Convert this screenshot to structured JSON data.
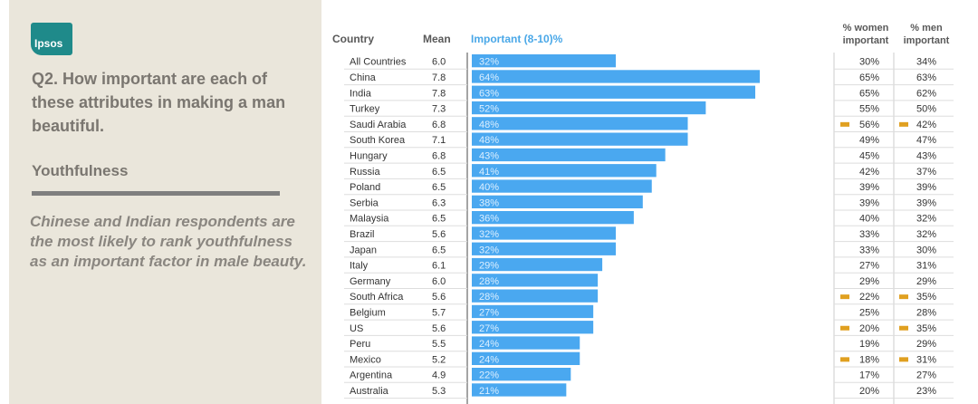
{
  "brand": {
    "logo_text": "Ipsos"
  },
  "question": "Q2. How important are each of these attributes in making a man beautiful.",
  "topic": "Youthfulness",
  "insight": "Chinese and Indian respondents are the most likely to rank youthfulness as an important factor in male beauty.",
  "colors": {
    "bar": "#4aa8f0",
    "marker": "#e0a020",
    "panel": "#eae6db",
    "header_blue": "#4aa8e8"
  },
  "chart_data": {
    "type": "bar",
    "orientation": "horizontal",
    "headers": {
      "country": "Country",
      "mean": "Mean",
      "important": "Important (8-10)%",
      "women": "% women important",
      "men": "% men important"
    },
    "categories": [
      "All Countries",
      "China",
      "India",
      "Turkey",
      "Saudi Arabia",
      "South Korea",
      "Hungary",
      "Russia",
      "Poland",
      "Serbia",
      "Malaysia",
      "Brazil",
      "Japan",
      "Italy",
      "Germany",
      "South Africa",
      "Belgium",
      "US",
      "Peru",
      "Mexico",
      "Argentina",
      "Australia"
    ],
    "mean": [
      "6.0",
      "7.8",
      "7.8",
      "7.3",
      "6.8",
      "7.1",
      "6.8",
      "6.5",
      "6.5",
      "6.3",
      "6.5",
      "5.6",
      "6.5",
      "6.1",
      "6.0",
      "5.6",
      "5.7",
      "5.6",
      "5.5",
      "5.2",
      "4.9",
      "5.3"
    ],
    "series": [
      {
        "name": "Important (8-10)%",
        "values": [
          32,
          64,
          63,
          52,
          48,
          48,
          43,
          41,
          40,
          38,
          36,
          32,
          32,
          29,
          28,
          28,
          27,
          27,
          24,
          24,
          22,
          21
        ]
      }
    ],
    "women_pct": [
      "30%",
      "65%",
      "65%",
      "55%",
      "56%",
      "49%",
      "45%",
      "42%",
      "39%",
      "39%",
      "40%",
      "33%",
      "33%",
      "27%",
      "29%",
      "22%",
      "25%",
      "20%",
      "19%",
      "18%",
      "17%",
      "20%"
    ],
    "men_pct": [
      "34%",
      "63%",
      "62%",
      "50%",
      "42%",
      "47%",
      "43%",
      "37%",
      "39%",
      "39%",
      "32%",
      "32%",
      "30%",
      "31%",
      "29%",
      "35%",
      "28%",
      "35%",
      "29%",
      "31%",
      "27%",
      "23%"
    ],
    "flagged": [
      false,
      false,
      false,
      false,
      true,
      false,
      false,
      false,
      false,
      false,
      false,
      false,
      false,
      false,
      false,
      true,
      false,
      true,
      false,
      true,
      false,
      false
    ],
    "xlim": [
      0,
      64
    ]
  }
}
